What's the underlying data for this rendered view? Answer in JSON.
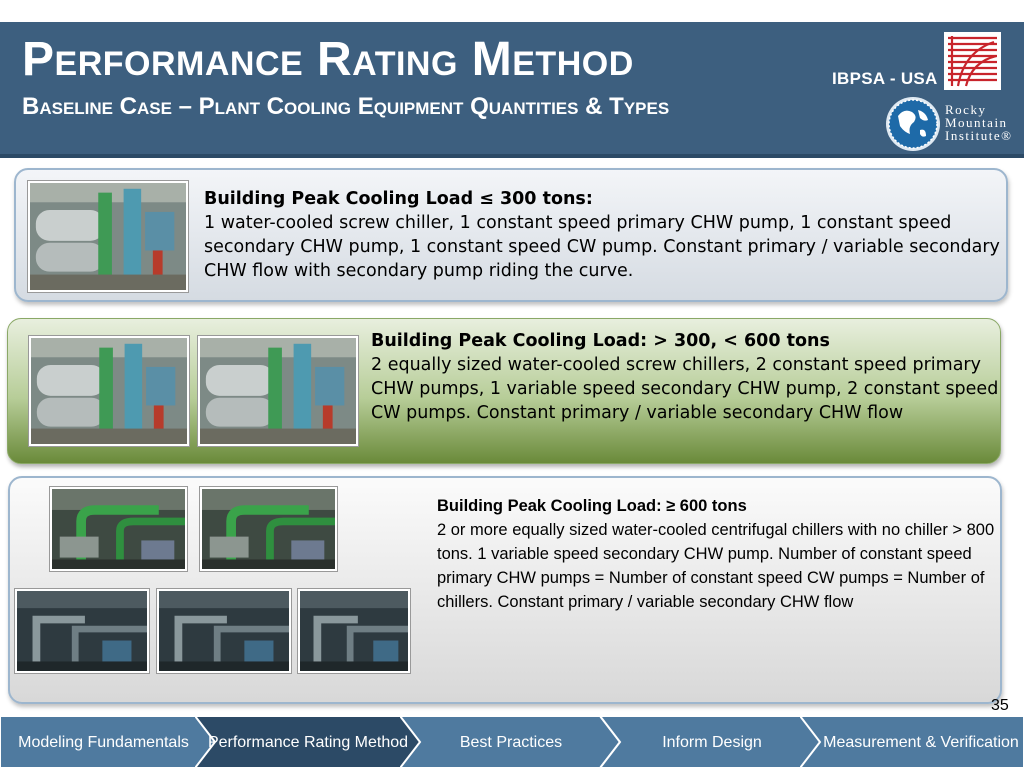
{
  "header": {
    "title": "Performance Rating Method",
    "subtitle": "Baseline Case – Plant Cooling Equipment Quantities & Types",
    "org": "IBPSA - USA",
    "rmi_logo_text": [
      "Rocky",
      "Mountain",
      "Institute®"
    ]
  },
  "sections": [
    {
      "heading": "Building Peak Cooling Load ≤ 300 tons:",
      "body": "1 water-cooled screw chiller, 1 constant speed primary CHW pump, 1 constant speed secondary CHW pump, 1 constant speed CW pump.  Constant primary / variable secondary CHW flow with secondary pump riding the curve."
    },
    {
      "heading": "Building Peak Cooling Load: > 300, < 600 tons",
      "body": "2 equally sized water-cooled screw chillers, 2 constant speed primary CHW pumps, 1 variable speed secondary CHW pump, 2 constant speed CW pumps. Constant primary / variable secondary CHW flow"
    },
    {
      "heading": "Building Peak Cooling Load: ≥ 600 tons",
      "body": "2 or more equally sized water-cooled centrifugal chillers with no chiller > 800 tons.  1 variable speed secondary CHW pump. Number of constant speed primary CHW pumps = Number of constant speed CW pumps = Number of chillers. Constant primary / variable secondary CHW flow"
    }
  ],
  "page_number": "35",
  "nav": [
    {
      "label": "Modeling Fundamentals",
      "active": false
    },
    {
      "label": "Performance Rating Method",
      "active": true
    },
    {
      "label": "Best Practices",
      "active": false
    },
    {
      "label": "Inform Design",
      "active": false
    },
    {
      "label": "Measurement & Verification",
      "active": false
    }
  ],
  "colors": {
    "header_bg": "#3d5f7f",
    "nav_inactive": "#4f7a9f",
    "nav_active": "#2c4a66",
    "panel_green": "#6a8a3a"
  }
}
